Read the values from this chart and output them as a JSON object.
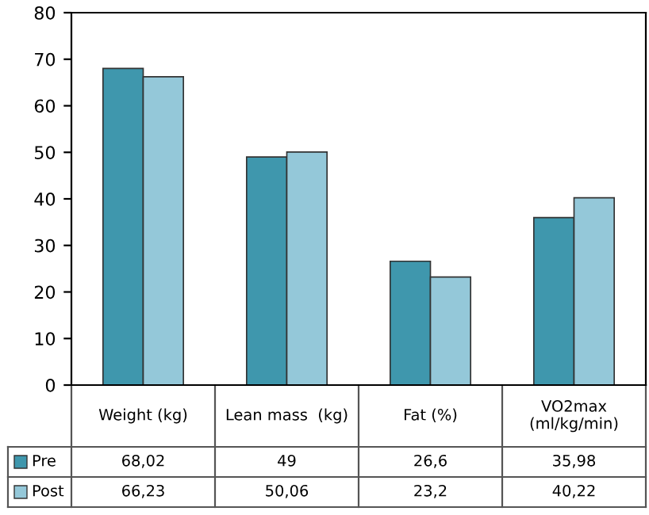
{
  "chart_data": {
    "type": "bar",
    "categories": [
      "Weight (kg)",
      "Lean mass  (kg)",
      "Fat (%)",
      "VO2max\n(ml/kg/min)"
    ],
    "series": [
      {
        "name": "Pre",
        "color": "#3f97ad",
        "values": [
          68.02,
          49,
          26.6,
          35.98
        ],
        "value_labels": [
          "68,02",
          "49",
          "26,6",
          "35,98"
        ]
      },
      {
        "name": "Post",
        "color": "#94c8d9",
        "values": [
          66.23,
          50.06,
          23.2,
          40.22
        ],
        "value_labels": [
          "66,23",
          "50,06",
          "23,2",
          "40,22"
        ]
      }
    ],
    "ylim": [
      0,
      80
    ],
    "yticks": [
      0,
      10,
      20,
      30,
      40,
      50,
      60,
      70,
      80
    ],
    "grid": false,
    "legend": "bottom left"
  }
}
